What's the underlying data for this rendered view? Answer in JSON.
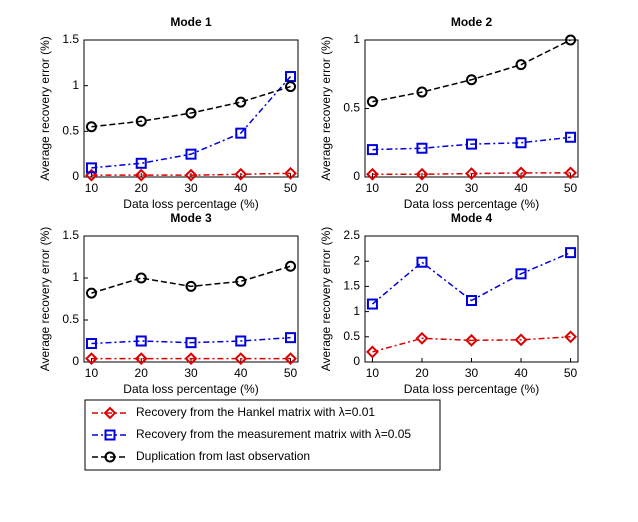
{
  "chart_data": [
    {
      "type": "line",
      "title": "Mode 1",
      "xlabel": "Data loss percentage (%)",
      "ylabel": "Average recovery error (%)",
      "x": [
        10,
        20,
        30,
        40,
        50
      ],
      "xlim": [
        8.5,
        51.5
      ],
      "xticks": [
        10,
        20,
        30,
        40,
        50
      ],
      "ylim": [
        0,
        1.5
      ],
      "yticks": [
        0,
        0.5,
        1,
        1.5
      ],
      "series": [
        {
          "color": "#dd0000",
          "marker": "diamond",
          "dash": "dashdot",
          "values": [
            0.02,
            0.02,
            0.02,
            0.03,
            0.04
          ]
        },
        {
          "color": "#0000dd",
          "marker": "square",
          "dash": "dashdot",
          "values": [
            0.1,
            0.15,
            0.25,
            0.48,
            1.1
          ]
        },
        {
          "color": "#000000",
          "marker": "circle",
          "dash": "dashed",
          "values": [
            0.55,
            0.61,
            0.7,
            0.82,
            0.99
          ]
        }
      ]
    },
    {
      "type": "line",
      "title": "Mode 2",
      "xlabel": "Data loss percentage (%)",
      "ylabel": "Average recovery error (%)",
      "x": [
        10,
        20,
        30,
        40,
        50
      ],
      "xlim": [
        8.5,
        51.5
      ],
      "xticks": [
        10,
        20,
        30,
        40,
        50
      ],
      "ylim": [
        0,
        1
      ],
      "yticks": [
        0,
        0.5,
        1
      ],
      "series": [
        {
          "color": "#dd0000",
          "marker": "diamond",
          "dash": "dashdot",
          "values": [
            0.02,
            0.02,
            0.025,
            0.03,
            0.03
          ]
        },
        {
          "color": "#0000dd",
          "marker": "square",
          "dash": "dashdot",
          "values": [
            0.2,
            0.21,
            0.24,
            0.25,
            0.29
          ]
        },
        {
          "color": "#000000",
          "marker": "circle",
          "dash": "dashed",
          "values": [
            0.55,
            0.62,
            0.71,
            0.82,
            1.0
          ]
        }
      ]
    },
    {
      "type": "line",
      "title": "Mode 3",
      "xlabel": "Data loss percentage (%)",
      "ylabel": "Average recovery error (%)",
      "x": [
        10,
        20,
        30,
        40,
        50
      ],
      "xlim": [
        8.5,
        51.5
      ],
      "xticks": [
        10,
        20,
        30,
        40,
        50
      ],
      "ylim": [
        0,
        1.5
      ],
      "yticks": [
        0,
        0.5,
        1,
        1.5
      ],
      "series": [
        {
          "color": "#dd0000",
          "marker": "diamond",
          "dash": "dashdot",
          "values": [
            0.04,
            0.04,
            0.04,
            0.04,
            0.04
          ]
        },
        {
          "color": "#0000dd",
          "marker": "square",
          "dash": "dashdot",
          "values": [
            0.22,
            0.25,
            0.23,
            0.25,
            0.29
          ]
        },
        {
          "color": "#000000",
          "marker": "circle",
          "dash": "dashed",
          "values": [
            0.82,
            1.0,
            0.9,
            0.96,
            1.14
          ]
        }
      ]
    },
    {
      "type": "line",
      "title": "Mode 4",
      "xlabel": "Data loss percentage (%)",
      "ylabel": "Average recovery error (%)",
      "x": [
        10,
        20,
        30,
        40,
        50
      ],
      "xlim": [
        8.5,
        51.5
      ],
      "xticks": [
        10,
        20,
        30,
        40,
        50
      ],
      "ylim": [
        0,
        2.5
      ],
      "yticks": [
        0,
        0.5,
        1,
        1.5,
        2,
        2.5
      ],
      "series": [
        {
          "color": "#dd0000",
          "marker": "diamond",
          "dash": "dashdot",
          "values": [
            0.2,
            0.47,
            0.43,
            0.44,
            0.5
          ]
        },
        {
          "color": "#0000dd",
          "marker": "square",
          "dash": "dashdot",
          "values": [
            1.15,
            1.98,
            1.22,
            1.75,
            2.17
          ]
        }
      ]
    }
  ],
  "legend": [
    {
      "name": "Recovery from the Hankel matrix with λ=0.01",
      "color": "#dd0000",
      "marker": "diamond",
      "dash": "dashdot"
    },
    {
      "name": "Recovery from the measurement matrix with λ=0.05",
      "color": "#0000dd",
      "marker": "square",
      "dash": "dashdot"
    },
    {
      "name": "Duplication from last observation",
      "color": "#000000",
      "marker": "circle",
      "dash": "dashed"
    }
  ]
}
